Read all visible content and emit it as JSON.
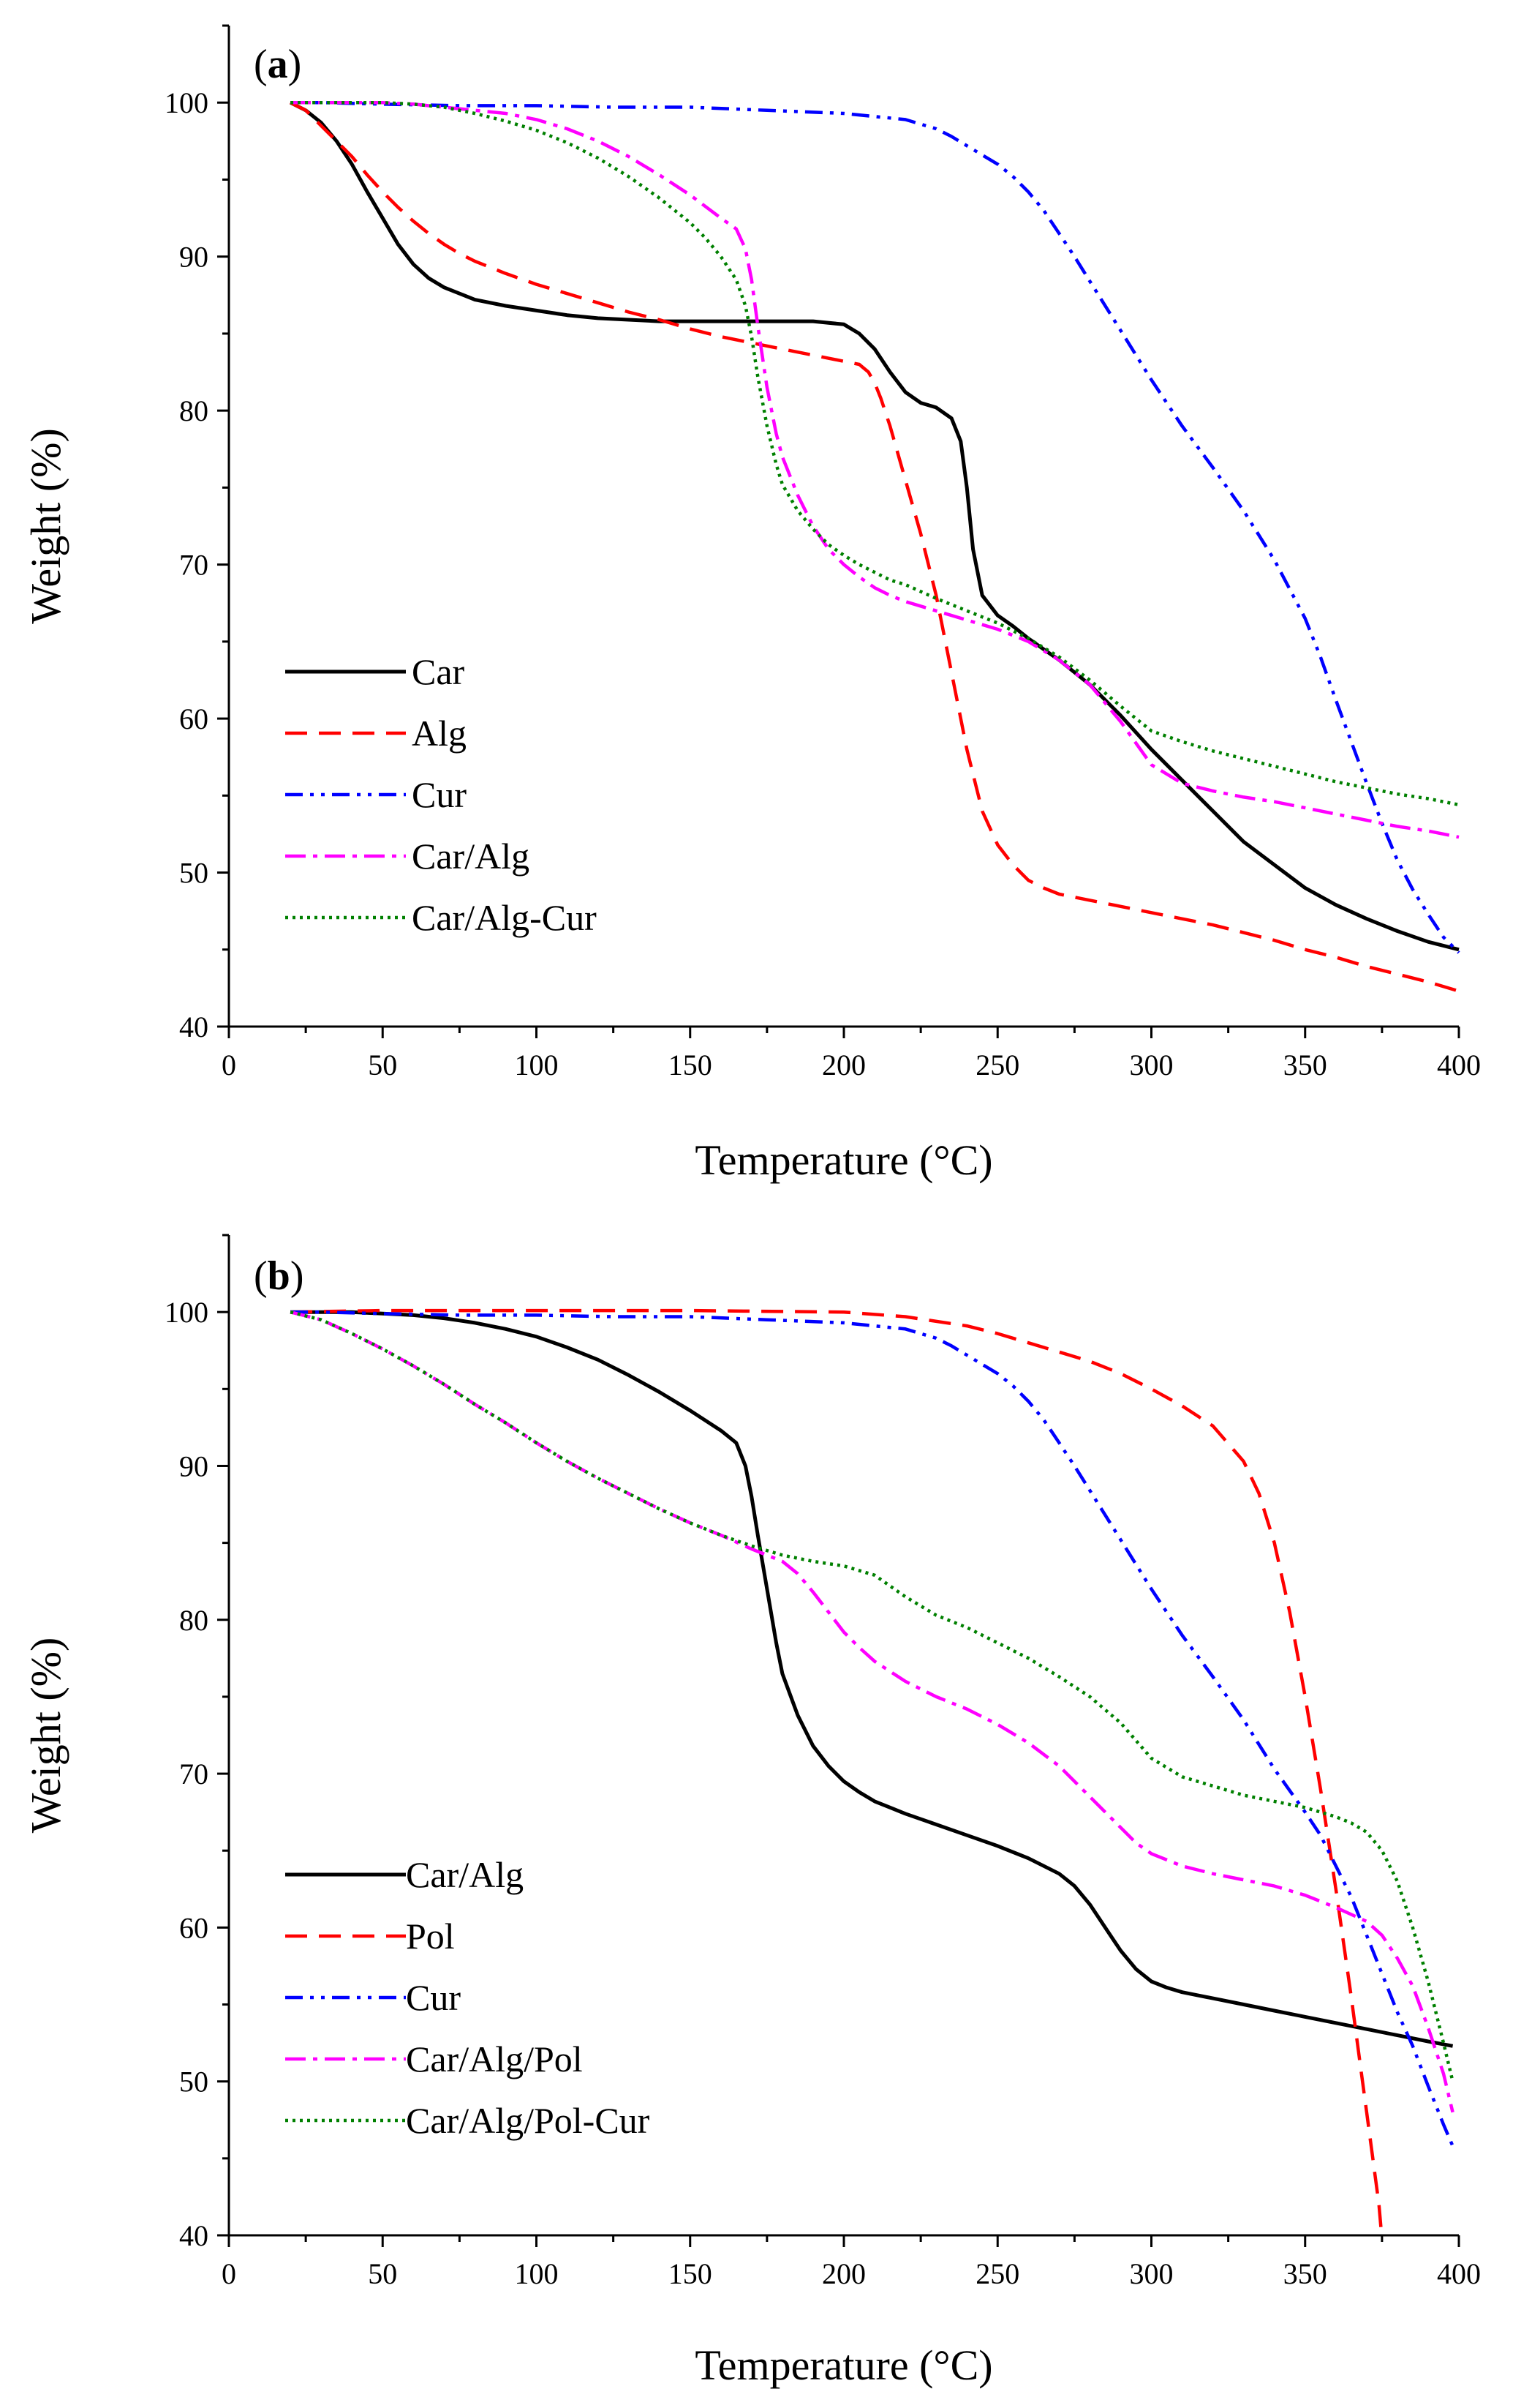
{
  "chart_data": [
    {
      "type": "line",
      "panel_label_open": "(",
      "panel_label_letter": "a",
      "panel_label_close": ")",
      "xlabel": "Temperature (°C)",
      "ylabel": "Weight (%)",
      "xlim": [
        0,
        400
      ],
      "ylim": [
        40,
        105
      ],
      "xticks": [
        0,
        50,
        100,
        150,
        200,
        250,
        300,
        350,
        400
      ],
      "yticks": [
        40,
        50,
        60,
        70,
        80,
        90,
        100
      ],
      "grid": false,
      "legend_position": "bottom-left",
      "series": [
        {
          "name": "Car",
          "color": "#000000",
          "dash": "solid",
          "x": [
            20,
            25,
            30,
            35,
            40,
            45,
            50,
            55,
            60,
            65,
            70,
            75,
            80,
            90,
            100,
            110,
            120,
            130,
            140,
            150,
            160,
            170,
            180,
            190,
            200,
            205,
            210,
            215,
            220,
            225,
            230,
            235,
            238,
            240,
            242,
            245,
            250,
            255,
            260,
            265,
            270,
            275,
            280,
            290,
            300,
            310,
            320,
            330,
            340,
            350,
            360,
            370,
            380,
            390,
            400
          ],
          "y": [
            100,
            99.5,
            98.7,
            97.5,
            96,
            94.2,
            92.5,
            90.8,
            89.5,
            88.6,
            88,
            87.6,
            87.2,
            86.8,
            86.5,
            86.2,
            86,
            85.9,
            85.8,
            85.8,
            85.8,
            85.8,
            85.8,
            85.8,
            85.6,
            85,
            84,
            82.5,
            81.2,
            80.5,
            80.2,
            79.5,
            78,
            75,
            71,
            68,
            66.7,
            66,
            65.2,
            64.5,
            63.8,
            63,
            62.2,
            60.2,
            58,
            56,
            54,
            52,
            50.5,
            49,
            47.9,
            47,
            46.2,
            45.5,
            45
          ]
        },
        {
          "name": "Alg",
          "color": "#ff0000",
          "dash": "dashed",
          "x": [
            20,
            25,
            30,
            35,
            40,
            45,
            50,
            55,
            60,
            65,
            70,
            75,
            80,
            90,
            100,
            110,
            120,
            130,
            140,
            150,
            160,
            170,
            180,
            190,
            200,
            205,
            208,
            210,
            212,
            215,
            220,
            225,
            230,
            235,
            240,
            245,
            250,
            255,
            260,
            265,
            270,
            280,
            290,
            300,
            310,
            320,
            330,
            340,
            350,
            360,
            370,
            380,
            390,
            400
          ],
          "y": [
            100,
            99.5,
            98.5,
            97.5,
            96.5,
            95.3,
            94.2,
            93.2,
            92.3,
            91.5,
            90.8,
            90.2,
            89.7,
            88.9,
            88.2,
            87.6,
            87,
            86.4,
            85.9,
            85.3,
            84.8,
            84.4,
            84,
            83.6,
            83.2,
            83,
            82.5,
            81.8,
            80.8,
            79,
            75.5,
            72,
            68,
            63,
            58,
            54,
            51.8,
            50.5,
            49.5,
            49,
            48.6,
            48.2,
            47.8,
            47.4,
            47,
            46.6,
            46.1,
            45.6,
            45,
            44.5,
            43.9,
            43.4,
            42.9,
            42.3
          ]
        },
        {
          "name": "Cur",
          "color": "#0000ff",
          "dash": "dashdotdot",
          "x": [
            20,
            30,
            50,
            75,
            100,
            125,
            150,
            175,
            200,
            210,
            220,
            225,
            230,
            235,
            240,
            245,
            250,
            255,
            260,
            265,
            270,
            275,
            280,
            290,
            300,
            310,
            320,
            330,
            340,
            350,
            355,
            360,
            365,
            370,
            375,
            380,
            385,
            390,
            395,
            400
          ],
          "y": [
            100,
            100,
            99.9,
            99.8,
            99.8,
            99.7,
            99.7,
            99.5,
            99.3,
            99.1,
            98.9,
            98.6,
            98.3,
            97.8,
            97.2,
            96.6,
            96,
            95.2,
            94.2,
            93,
            91.5,
            90,
            88.4,
            85.2,
            82,
            79,
            76.3,
            73.5,
            70.3,
            66.5,
            64,
            61.2,
            58.5,
            55.8,
            53.2,
            50.8,
            48.9,
            47.3,
            45.8,
            44.8
          ]
        },
        {
          "name": "Car/Alg",
          "color": "#ff00ff",
          "dash": "dashdot",
          "x": [
            20,
            25,
            30,
            40,
            50,
            60,
            70,
            80,
            90,
            100,
            110,
            120,
            130,
            140,
            150,
            160,
            165,
            168,
            170,
            172,
            175,
            178,
            180,
            185,
            190,
            195,
            200,
            205,
            210,
            215,
            220,
            230,
            240,
            250,
            260,
            270,
            280,
            290,
            300,
            310,
            320,
            330,
            340,
            350,
            360,
            370,
            380,
            390,
            400
          ],
          "y": [
            100,
            100,
            100,
            100,
            100,
            99.9,
            99.7,
            99.5,
            99.3,
            98.9,
            98.3,
            97.5,
            96.5,
            95.3,
            94,
            92.5,
            91.8,
            90.5,
            88.5,
            85.5,
            81.5,
            78.5,
            77,
            74.5,
            72.5,
            71,
            70,
            69.2,
            68.5,
            68,
            67.6,
            67,
            66.4,
            65.8,
            65,
            63.8,
            62.2,
            59.8,
            57,
            55.8,
            55.3,
            54.9,
            54.6,
            54.2,
            53.8,
            53.4,
            53,
            52.7,
            52.3
          ]
        },
        {
          "name": "Car/Alg-Cur",
          "color": "#008000",
          "dash": "dotted",
          "x": [
            20,
            25,
            30,
            40,
            50,
            60,
            70,
            80,
            90,
            100,
            110,
            120,
            130,
            140,
            150,
            155,
            160,
            165,
            168,
            170,
            172,
            175,
            178,
            180,
            185,
            190,
            195,
            200,
            205,
            210,
            215,
            220,
            230,
            240,
            250,
            260,
            270,
            280,
            290,
            300,
            310,
            320,
            330,
            340,
            350,
            360,
            370,
            380,
            390,
            400
          ],
          "y": [
            100,
            100,
            100,
            100,
            100,
            99.9,
            99.7,
            99.3,
            98.8,
            98.2,
            97.4,
            96.4,
            95.2,
            93.8,
            92.2,
            91.2,
            90,
            88.5,
            86.8,
            84.8,
            82.2,
            79,
            76.5,
            75.2,
            73.5,
            72.3,
            71.3,
            70.6,
            70,
            69.5,
            69,
            68.7,
            67.8,
            67,
            66.2,
            65.2,
            64,
            62.5,
            60.8,
            59.2,
            58.5,
            57.9,
            57.4,
            56.9,
            56.4,
            55.9,
            55.5,
            55.1,
            54.8,
            54.4
          ]
        }
      ]
    },
    {
      "type": "line",
      "panel_label_open": "(",
      "panel_label_letter": "b",
      "panel_label_close": ")",
      "xlabel": "Temperature (°C)",
      "ylabel": "Weight (%)",
      "xlim": [
        0,
        400
      ],
      "ylim": [
        40,
        105
      ],
      "xticks": [
        0,
        50,
        100,
        150,
        200,
        250,
        300,
        350,
        400
      ],
      "yticks": [
        40,
        50,
        60,
        70,
        80,
        90,
        100
      ],
      "grid": false,
      "legend_position": "bottom-left",
      "series": [
        {
          "name": "Car/Alg",
          "color": "#000000",
          "dash": "solid",
          "x": [
            20,
            30,
            40,
            50,
            60,
            70,
            80,
            90,
            100,
            110,
            120,
            130,
            140,
            150,
            160,
            165,
            168,
            170,
            172,
            175,
            178,
            180,
            185,
            190,
            195,
            200,
            205,
            210,
            215,
            220,
            230,
            240,
            250,
            260,
            270,
            275,
            280,
            285,
            290,
            295,
            300,
            305,
            310,
            320,
            330,
            340,
            350,
            360,
            370,
            380,
            390,
            398
          ],
          "y": [
            100,
            100,
            100,
            99.9,
            99.8,
            99.6,
            99.3,
            98.9,
            98.4,
            97.7,
            96.9,
            95.9,
            94.8,
            93.6,
            92.3,
            91.5,
            90,
            88,
            85.5,
            82,
            78.5,
            76.5,
            73.8,
            71.8,
            70.5,
            69.5,
            68.8,
            68.2,
            67.8,
            67.4,
            66.7,
            66,
            65.3,
            64.5,
            63.5,
            62.7,
            61.5,
            60,
            58.5,
            57.3,
            56.5,
            56.1,
            55.8,
            55.4,
            55,
            54.6,
            54.2,
            53.8,
            53.4,
            53,
            52.6,
            52.3
          ]
        },
        {
          "name": "Pol",
          "color": "#ff0000",
          "dash": "dashed",
          "x": [
            20,
            50,
            100,
            150,
            200,
            220,
            240,
            250,
            260,
            270,
            280,
            290,
            300,
            310,
            320,
            330,
            335,
            340,
            345,
            350,
            355,
            360,
            365,
            368,
            370,
            372,
            374,
            375
          ],
          "y": [
            100,
            100.1,
            100.1,
            100.1,
            100,
            99.7,
            99.1,
            98.6,
            98,
            97.4,
            96.8,
            96,
            95,
            93.9,
            92.6,
            90.3,
            88.2,
            85,
            80.5,
            75,
            69,
            62.5,
            55.5,
            51,
            48,
            45,
            42,
            39.7
          ]
        },
        {
          "name": "Cur",
          "color": "#0000ff",
          "dash": "dashdotdot",
          "x": [
            20,
            30,
            50,
            75,
            100,
            125,
            150,
            175,
            200,
            210,
            220,
            225,
            230,
            235,
            240,
            245,
            250,
            255,
            260,
            265,
            270,
            275,
            280,
            290,
            300,
            310,
            320,
            330,
            340,
            350,
            355,
            360,
            365,
            370,
            375,
            380,
            385,
            390,
            395,
            398
          ],
          "y": [
            100,
            100,
            99.9,
            99.8,
            99.8,
            99.7,
            99.7,
            99.5,
            99.3,
            99.1,
            98.9,
            98.6,
            98.3,
            97.8,
            97.2,
            96.6,
            96,
            95.2,
            94.2,
            93,
            91.5,
            90,
            88.4,
            85.2,
            82,
            79,
            76.3,
            73.5,
            70.3,
            67.5,
            66,
            64,
            62,
            59.5,
            57,
            54.5,
            52.3,
            49.7,
            47.2,
            45.8
          ]
        },
        {
          "name": "Car/Alg/Pol",
          "color": "#ff00ff",
          "dash": "dashdot",
          "x": [
            20,
            30,
            40,
            50,
            60,
            70,
            80,
            90,
            100,
            110,
            120,
            130,
            140,
            150,
            160,
            170,
            175,
            180,
            185,
            190,
            195,
            200,
            205,
            210,
            220,
            230,
            240,
            250,
            260,
            270,
            280,
            290,
            295,
            300,
            310,
            320,
            330,
            340,
            350,
            360,
            370,
            375,
            380,
            385,
            390,
            395,
            398
          ],
          "y": [
            100,
            99.5,
            98.6,
            97.6,
            96.5,
            95.3,
            94,
            92.8,
            91.5,
            90.3,
            89.2,
            88.2,
            87.2,
            86.3,
            85.5,
            84.6,
            84.2,
            83.8,
            83,
            81.8,
            80.5,
            79.2,
            78.2,
            77.3,
            76,
            75,
            74.2,
            73.2,
            72,
            70.5,
            68.5,
            66.5,
            65.5,
            64.8,
            64,
            63.5,
            63.1,
            62.7,
            62.1,
            61.3,
            60.4,
            59.5,
            58,
            56.2,
            53.5,
            50.5,
            48
          ]
        },
        {
          "name": "Car/Alg/Pol-Cur",
          "color": "#008000",
          "dash": "dotted",
          "x": [
            20,
            30,
            40,
            50,
            60,
            70,
            80,
            90,
            100,
            110,
            120,
            130,
            140,
            150,
            160,
            170,
            180,
            190,
            200,
            210,
            220,
            230,
            240,
            250,
            260,
            270,
            280,
            290,
            300,
            310,
            320,
            330,
            340,
            350,
            360,
            365,
            370,
            375,
            380,
            385,
            390,
            395,
            398
          ],
          "y": [
            100,
            99.5,
            98.6,
            97.6,
            96.5,
            95.3,
            94,
            92.8,
            91.5,
            90.3,
            89.2,
            88.2,
            87.2,
            86.3,
            85.5,
            84.8,
            84.2,
            83.8,
            83.5,
            82.9,
            81.5,
            80.3,
            79.5,
            78.5,
            77.5,
            76.3,
            75,
            73.3,
            71,
            69.8,
            69.2,
            68.6,
            68.2,
            67.8,
            67.2,
            66.8,
            66.2,
            65,
            63,
            60,
            56.5,
            52.5,
            50
          ]
        }
      ]
    }
  ]
}
